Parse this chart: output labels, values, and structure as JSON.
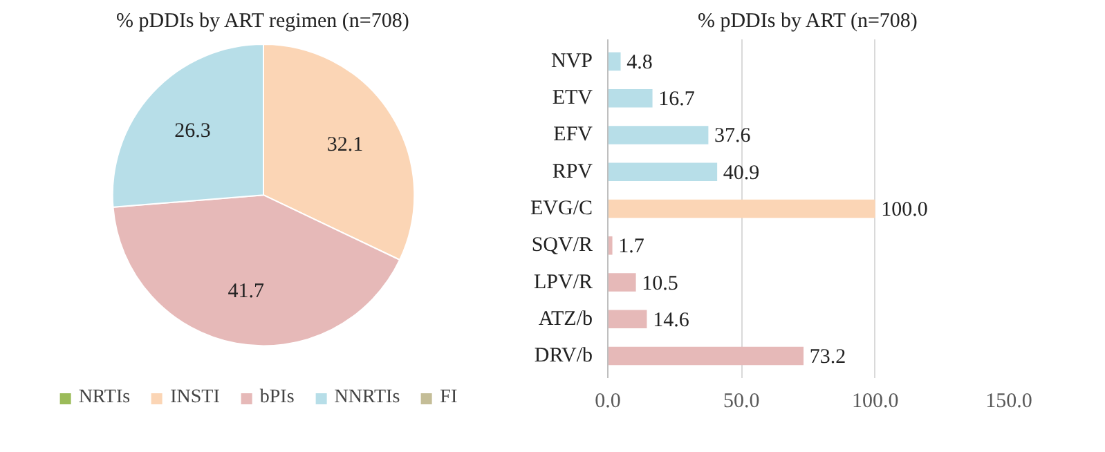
{
  "chart_data": [
    {
      "type": "pie",
      "title": "% pDDIs by ART regimen (n=708)",
      "categories": [
        "NRTIs",
        "INSTI",
        "bPIs",
        "NNRTIs",
        "FI"
      ],
      "values": [
        0,
        32.1,
        41.7,
        26.3,
        0
      ],
      "colors": [
        "#9bbb59",
        "#fbd5b5",
        "#e6b9b8",
        "#b7dee8",
        "#c4bd97"
      ],
      "value_labels": [
        null,
        "32.1",
        "41.7",
        "26.3",
        null
      ],
      "legend": "bottom"
    },
    {
      "type": "bar",
      "orientation": "horizontal",
      "title": "% pDDIs by ART (n=708)",
      "categories": [
        "NVP",
        "ETV",
        "EFV",
        "RPV",
        "EVG/C",
        "SQV/R",
        "LPV/R",
        "ATZ/b",
        "DRV/b"
      ],
      "values": [
        4.8,
        16.7,
        37.6,
        40.9,
        100.0,
        1.7,
        10.5,
        14.6,
        73.2
      ],
      "colors": [
        "#b7dee8",
        "#b7dee8",
        "#b7dee8",
        "#b7dee8",
        "#fbd5b5",
        "#e6b9b8",
        "#e6b9b8",
        "#e6b9b8",
        "#e6b9b8"
      ],
      "value_labels": [
        "4.8",
        "16.7",
        "37.6",
        "40.9",
        "100.0",
        "1.7",
        "10.5",
        "14.6",
        "73.2"
      ],
      "xlim": [
        0,
        150
      ],
      "xticks": [
        {
          "value": 0,
          "label": "0.0"
        },
        {
          "value": 50,
          "label": "50.0"
        },
        {
          "value": 100,
          "label": "100.0"
        },
        {
          "value": 150,
          "label": "150.0"
        }
      ],
      "grid": "x"
    }
  ]
}
